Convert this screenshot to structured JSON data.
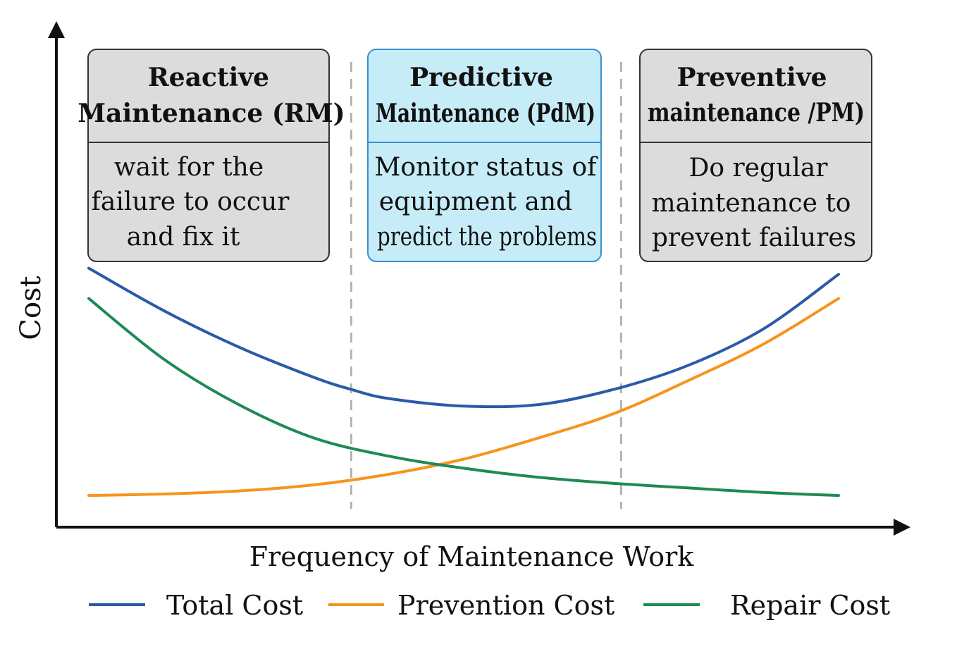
{
  "chart_data": {
    "type": "line",
    "title": "",
    "xlabel": "Frequency of Maintenance Work",
    "ylabel": "Cost",
    "xlabel_color": "#e8321f",
    "xlim": [
      0,
      1
    ],
    "ylim": [
      0,
      1
    ],
    "grid": false,
    "legend_position": "bottom",
    "regions": [
      {
        "title_line1": "Reactive",
        "title_line2": "Maintenance (RM)",
        "desc": [
          "wait for the",
          "failure to occur",
          "and fix it"
        ],
        "fill": "#dcdcdc",
        "highlight": false
      },
      {
        "title_line1": "Predictive",
        "title_line2": "Maintenance (PdM)",
        "desc": [
          "Monitor status of",
          "equipment and",
          "predict the problems"
        ],
        "fill": "#c6ecf8",
        "highlight": true
      },
      {
        "title_line1": "Preventive",
        "title_line2": "maintenance /PM)",
        "desc": [
          "Do regular",
          "maintenance to",
          "prevent failures"
        ],
        "fill": "#dcdcdc",
        "highlight": false
      }
    ],
    "dividers": [
      0.35,
      0.71
    ],
    "series": [
      {
        "name": "Total Cost",
        "color": "#2a5aa8",
        "x": [
          0.0,
          0.1,
          0.2,
          0.3,
          0.35,
          0.4,
          0.5,
          0.6,
          0.7,
          0.8,
          0.9,
          1.0
        ],
        "y": [
          0.78,
          0.64,
          0.52,
          0.42,
          0.38,
          0.35,
          0.325,
          0.33,
          0.38,
          0.46,
          0.58,
          0.76
        ]
      },
      {
        "name": "Prevention Cost",
        "color": "#f7941d",
        "x": [
          0.0,
          0.1,
          0.2,
          0.3,
          0.4,
          0.5,
          0.6,
          0.7,
          0.8,
          0.9,
          1.0
        ],
        "y": [
          0.03,
          0.035,
          0.045,
          0.065,
          0.1,
          0.15,
          0.22,
          0.3,
          0.41,
          0.53,
          0.68
        ]
      },
      {
        "name": "Repair Cost",
        "color": "#1e8a55",
        "x": [
          0.0,
          0.1,
          0.2,
          0.3,
          0.4,
          0.5,
          0.6,
          0.7,
          0.8,
          0.9,
          1.0
        ],
        "y": [
          0.68,
          0.48,
          0.33,
          0.22,
          0.16,
          0.12,
          0.09,
          0.07,
          0.055,
          0.04,
          0.03
        ]
      }
    ]
  }
}
